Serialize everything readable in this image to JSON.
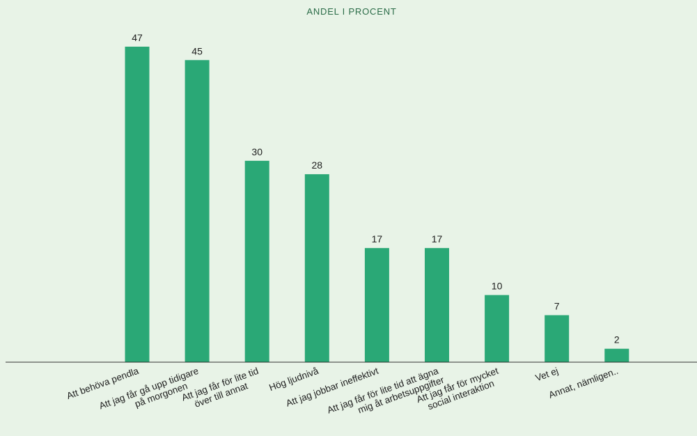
{
  "chart_data": {
    "type": "bar",
    "title": "ANDEL I PROCENT",
    "xlabel": "",
    "ylabel": "",
    "ylim": [
      0,
      50
    ],
    "grid": false,
    "categories": [
      [
        "Att behöva pendla"
      ],
      [
        "Att jag får gå upp tidigare",
        "på morgonen"
      ],
      [
        "Att jag får för lite tid",
        "över till annat"
      ],
      [
        "Hög ljudnivå"
      ],
      [
        "Att jag jobbar ineffektivt"
      ],
      [
        "Att jag får för lite tid att ägna",
        "mig åt arbetsuppgifter"
      ],
      [
        "Att jag får för mycket",
        "social interaktion"
      ],
      [
        "Vet ej"
      ],
      [
        "Annat, nämligen.."
      ]
    ],
    "values": [
      47,
      45,
      30,
      28,
      17,
      17,
      10,
      7,
      2
    ],
    "colors": {
      "bar": "#2aa876",
      "axis": "#333333",
      "title": "#2a6b47",
      "background": "#e8f3e7"
    }
  }
}
